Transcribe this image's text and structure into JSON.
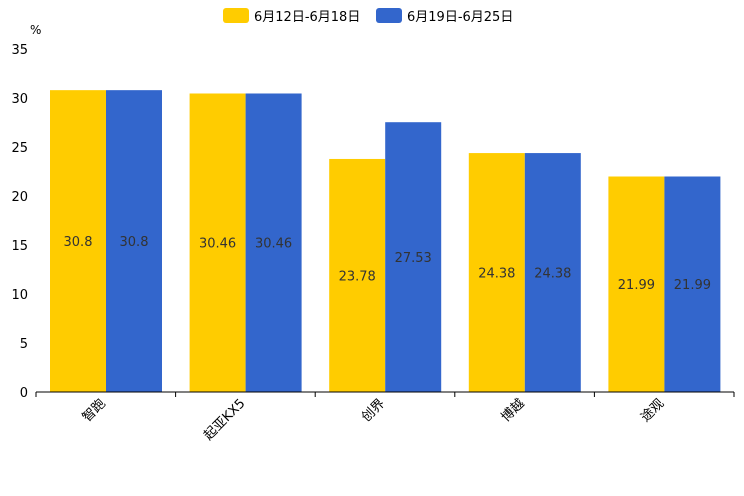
{
  "chart_data": {
    "type": "bar",
    "title": "",
    "xlabel": "",
    "ylabel": "",
    "unit": "%",
    "categories": [
      "智跑",
      "起亚KX5",
      "创界",
      "博越",
      "途观"
    ],
    "series": [
      {
        "name": "6月12日-6月18日",
        "color": "#FFCC00",
        "values": [
          30.8,
          30.46,
          23.78,
          24.38,
          21.99
        ]
      },
      {
        "name": "6月19日-6月25日",
        "color": "#3366CC",
        "values": [
          30.8,
          30.46,
          27.53,
          24.38,
          21.99
        ]
      }
    ],
    "ylim": [
      0,
      35
    ],
    "yticks": [
      0,
      5,
      10,
      15,
      20,
      25,
      30,
      35
    ],
    "grid": false,
    "legend_position": "top-center"
  }
}
